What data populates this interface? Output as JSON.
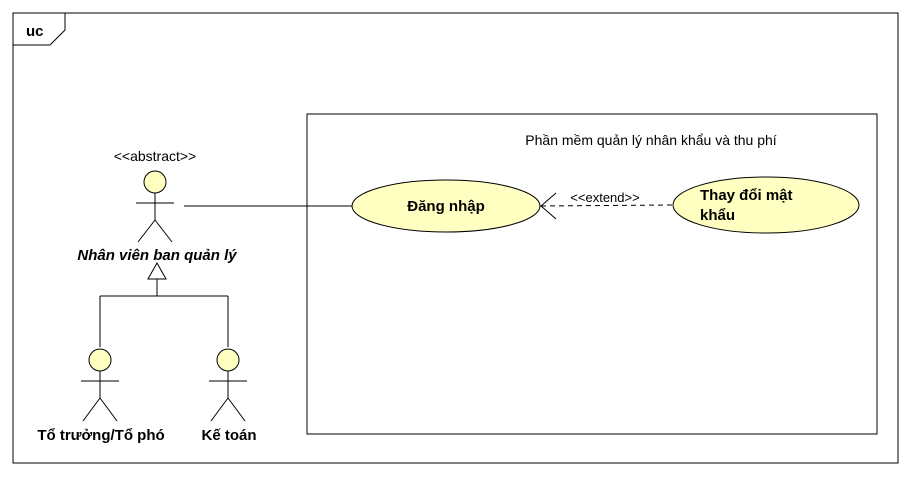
{
  "diagram": {
    "frame_label": "uc",
    "system": {
      "title": "Phần mềm quản lý nhân khẩu và thu phí"
    },
    "actors": {
      "abstract_actor": {
        "stereotype": "<<abstract>>",
        "name": "Nhân viên ban quản lý"
      },
      "team_leader": {
        "name": "Tổ trưởng/Tổ phó"
      },
      "accountant": {
        "name": "Kế toán"
      }
    },
    "use_cases": {
      "login": {
        "name": "Đăng nhập"
      },
      "change_password": {
        "line1": "Thay đổi mật",
        "line2": "khẩu"
      }
    },
    "relationships": {
      "extend_label": "<<extend>>"
    },
    "colors": {
      "usecase_fill": "#ffffc2",
      "actor_fill": "#ffffc2",
      "stroke": "#000000",
      "background": "#ffffff"
    }
  }
}
